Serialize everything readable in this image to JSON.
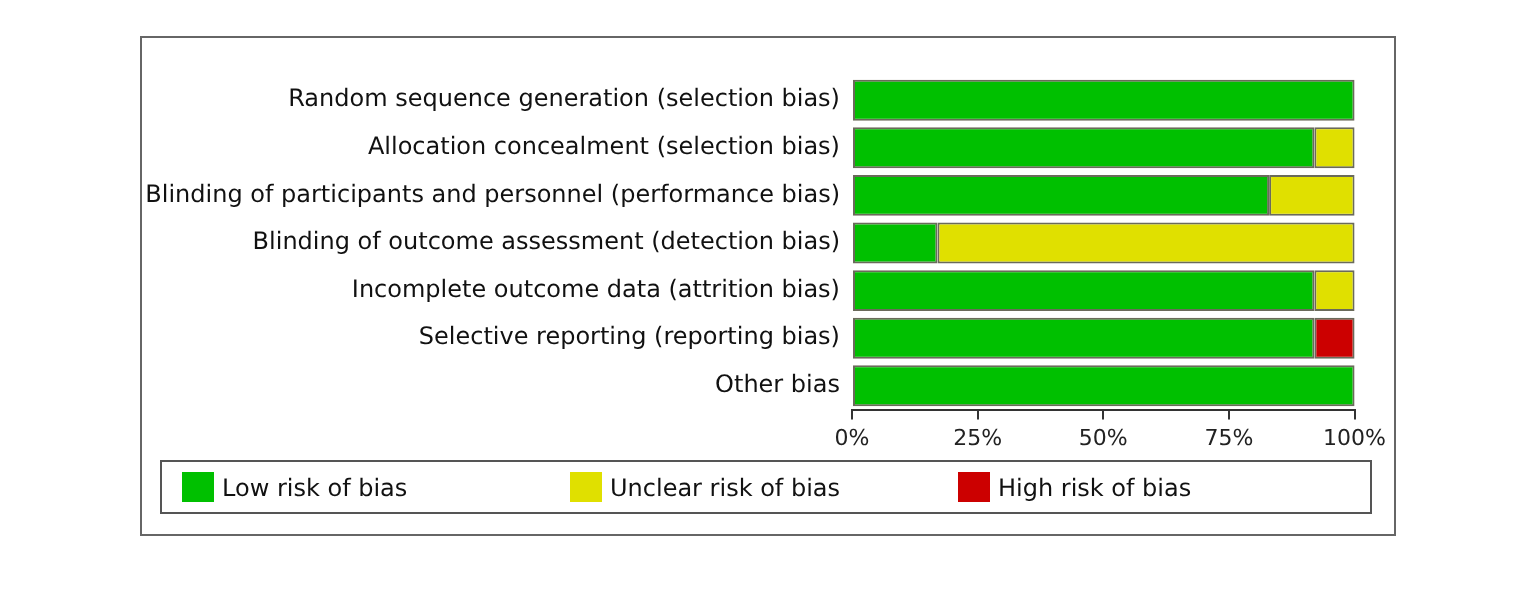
{
  "chart_data": {
    "type": "bar",
    "orientation": "horizontal",
    "stacked": true,
    "categories": [
      "Random sequence generation (selection bias)",
      "Allocation concealment (selection bias)",
      "Blinding of participants and personnel (performance bias)",
      "Blinding of outcome assessment (detection bias)",
      "Incomplete outcome data (attrition bias)",
      "Selective reporting (reporting bias)",
      "Other bias"
    ],
    "series": [
      {
        "name": "Low risk of bias",
        "color": "#00c000",
        "values": [
          100,
          92,
          83,
          17,
          92,
          92,
          100
        ]
      },
      {
        "name": "Unclear risk of bias",
        "color": "#e0e000",
        "values": [
          0,
          8,
          17,
          83,
          8,
          0,
          0
        ]
      },
      {
        "name": "High risk of bias",
        "color": "#cc0000",
        "values": [
          0,
          0,
          0,
          0,
          0,
          8,
          0
        ]
      }
    ],
    "xlim": [
      0,
      100
    ],
    "xticks": [
      {
        "value": 0,
        "label": "0%"
      },
      {
        "value": 25,
        "label": "25%"
      },
      {
        "value": 50,
        "label": "50%"
      },
      {
        "value": 75,
        "label": "75%"
      },
      {
        "value": 100,
        "label": "100%"
      }
    ],
    "grid": false,
    "legend": "bottom"
  }
}
